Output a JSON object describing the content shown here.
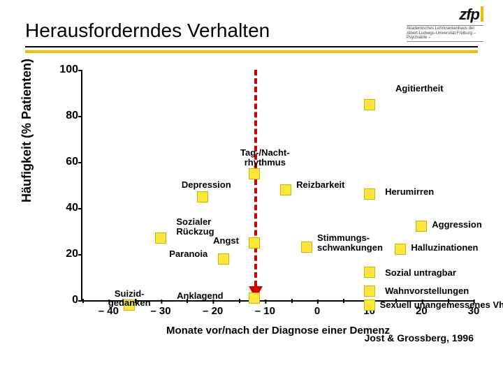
{
  "header": {
    "title": "Herausforderndes Verhalten",
    "logo_main": "zfp",
    "logo_sub": "Akademisches Lehrkrankenhaus der Albert-Ludwigs-Universität Freiburg – Psychiatrie –"
  },
  "chart": {
    "type": "scatter",
    "ylabel": "Häufigkeit (% Patienten)",
    "xlabel": "Monate vor/nach der Diagnose einer Dementz",
    "xlabel_actual": "Monate vor/nach der Diagnose einer Demenz",
    "ylim": [
      0,
      100
    ],
    "ytick_step": 20,
    "xlim": [
      -45,
      30
    ],
    "xticks": [
      -40,
      -30,
      -20,
      -10,
      0,
      10,
      20,
      30
    ],
    "xticks_display": [
      "– 40",
      "– 30",
      "– 20",
      "– 10",
      "0",
      "10",
      "20",
      "30"
    ],
    "minor_xticks": [
      -45,
      -35,
      -25,
      -15,
      -5,
      5,
      15,
      25
    ],
    "vline_x": -12,
    "marker_color": "#ffe63a",
    "marker_border": "#c9b800",
    "vline_color": "#d00000",
    "accent_color": "#f0c000",
    "background_color": "#ffffff",
    "series": [
      {
        "label": "Agitiertheit",
        "x": 10,
        "y": 85,
        "lx": 15,
        "ly": 94,
        "align": "left"
      },
      {
        "label": "Tag-/Nacht-\nrhythmus",
        "x": -12,
        "y": 55,
        "lx": -10,
        "ly": 66,
        "align": "center"
      },
      {
        "label": "Depression",
        "x": -22,
        "y": 45,
        "lx": -26,
        "ly": 52,
        "align": "left"
      },
      {
        "label": "Reizbarkeit",
        "x": -6,
        "y": 48,
        "lx": -4,
        "ly": 52,
        "align": "left"
      },
      {
        "label": "Herumirren",
        "x": 10,
        "y": 46,
        "lx": 13,
        "ly": 49,
        "align": "left"
      },
      {
        "label": "Sozialer\nRückzug",
        "x": -30,
        "y": 27,
        "lx": -27,
        "ly": 36,
        "align": "left"
      },
      {
        "label": "Aggression",
        "x": 20,
        "y": 32,
        "lx": 22,
        "ly": 35,
        "align": "left"
      },
      {
        "label": "Angst",
        "x": -12,
        "y": 25,
        "lx": -15,
        "ly": 28,
        "align": "right"
      },
      {
        "label": "Stimmungs-\nschwankungen",
        "x": -2,
        "y": 23,
        "lx": 0,
        "ly": 29,
        "align": "left"
      },
      {
        "label": "Paranoia",
        "x": -18,
        "y": 18,
        "lx": -21,
        "ly": 22,
        "align": "right"
      },
      {
        "label": "Halluzinationen",
        "x": 16,
        "y": 22,
        "lx": 18,
        "ly": 25,
        "align": "left"
      },
      {
        "label": "Sozial untragbar",
        "x": 10,
        "y": 12,
        "lx": 13,
        "ly": 14,
        "align": "left"
      },
      {
        "label": "Suizid-\ngedanken",
        "x": -36,
        "y": -2,
        "lx": -36,
        "ly": 5,
        "align": "center"
      },
      {
        "label": "Anklagend",
        "x": -12,
        "y": 1,
        "lx": -18,
        "ly": 4,
        "align": "right"
      },
      {
        "label": "Wahnvorstellungen",
        "x": 10,
        "y": 4,
        "lx": 13,
        "ly": 6,
        "align": "left"
      },
      {
        "label": "Sexuell unangemessenes Vh.",
        "x": 10,
        "y": -2,
        "lx": 12,
        "ly": 0,
        "align": "left"
      }
    ]
  },
  "citation": "Jost & Grossberg, 1996"
}
